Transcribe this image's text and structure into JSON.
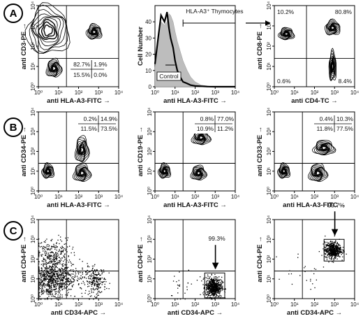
{
  "figure": {
    "row_labels": [
      "A",
      "B",
      "C"
    ]
  },
  "chart_data": [
    {
      "id": "A1",
      "type": "scatter",
      "style": "contour",
      "xlabel": "anti HLA-A3-FITC →",
      "ylabel": "anti CD3-PE →",
      "x_scale": "log",
      "y_scale": "log",
      "xlim": [
        1,
        10000
      ],
      "ylim": [
        1,
        10000
      ],
      "ticks": [
        "10⁰",
        "10¹",
        "10²",
        "10³",
        "10⁴"
      ],
      "quadrants": {
        "x": 25,
        "y": 25
      },
      "quadrant_labels": {
        "UL": "82.7%",
        "UR": "1.9%",
        "LL": "15.5%",
        "LR": "0.0%"
      },
      "quadrant_label_box": "lower-right",
      "populations": [
        {
          "cx": 3,
          "cy": 600,
          "sx": 0.7,
          "sy": 0.8
        },
        {
          "cx": 600,
          "cy": 500,
          "sx": 0.25,
          "sy": 0.25
        },
        {
          "cx": 6,
          "cy": 8,
          "sx": 0.25,
          "sy": 0.3
        }
      ]
    },
    {
      "id": "A2",
      "type": "area",
      "style": "histogram",
      "xlabel": "anti HLA-A3-FITC →",
      "ylabel": "Cell Number",
      "x_scale": "log",
      "xlim": [
        1,
        10000
      ],
      "ylim": [
        0,
        50
      ],
      "ticks": [
        "10⁰",
        "10¹",
        "10²",
        "10³",
        "10⁴"
      ],
      "yticks": [
        0,
        10,
        20,
        30,
        40
      ],
      "series": [
        {
          "name": "HLA-A3⁺ Thymocytes",
          "x": [
            1,
            1.5,
            2,
            3,
            4,
            5,
            6,
            8,
            10,
            13,
            18,
            25,
            40,
            60,
            100,
            200,
            400,
            1000,
            10000
          ],
          "values": [
            14,
            32,
            44,
            40,
            46,
            36,
            30,
            24,
            16,
            10,
            6,
            3,
            2,
            1,
            0.5,
            0.3,
            0.1,
            0,
            0
          ]
        },
        {
          "name": "Control",
          "x": [
            1,
            1.5,
            2,
            3,
            4,
            5,
            6,
            8,
            10,
            13,
            18,
            25,
            40,
            60,
            100,
            200,
            400,
            1000,
            10000
          ],
          "values": [
            12,
            30,
            40,
            38,
            40,
            45,
            44,
            40,
            34,
            28,
            22,
            16,
            10,
            6,
            3,
            1,
            0.5,
            0,
            0
          ]
        }
      ],
      "gate": {
        "label": "HLA-A3⁺ Thymocytes",
        "x_from": 25,
        "x_to": 10000
      },
      "control_label": "Control"
    },
    {
      "id": "A3",
      "type": "scatter",
      "style": "contour",
      "xlabel": "anti CD4-TC →",
      "ylabel": "anti CD8-PE →",
      "x_scale": "log",
      "y_scale": "log",
      "xlim": [
        1,
        10000
      ],
      "ylim": [
        1,
        10000
      ],
      "ticks": [
        "10⁰",
        "10¹",
        "10²",
        "10³",
        "10⁴"
      ],
      "quadrants": {
        "x": 40,
        "y": 25
      },
      "quadrant_labels": {
        "UL": "10.2%",
        "UR": "80.8%",
        "LL": "0.6%",
        "LR": "8.4%"
      },
      "quadrant_label_box": "corners",
      "populations": [
        {
          "cx": 800,
          "cy": 800,
          "sx": 0.25,
          "sy": 0.25
        },
        {
          "cx": 800,
          "cy": 10,
          "sx": 0.12,
          "sy": 0.5
        },
        {
          "cx": 4,
          "cy": 400,
          "sx": 0.25,
          "sy": 0.2
        }
      ]
    },
    {
      "id": "B1",
      "type": "scatter",
      "style": "contour",
      "xlabel": "anti HLA-A3-FITC →",
      "ylabel": "anti CD34-PE →",
      "x_scale": "log",
      "y_scale": "log",
      "xlim": [
        1,
        10000
      ],
      "ylim": [
        1,
        10000
      ],
      "ticks": [
        "10⁰",
        "10¹",
        "10²",
        "10³",
        "10⁴"
      ],
      "quadrants": {
        "x": 25,
        "y": 25
      },
      "quadrant_labels": {
        "UL": "0.2%",
        "UR": "14.9%",
        "LL": "11.5%",
        "LR": "73.5%"
      },
      "quadrant_label_box": "top-right",
      "populations": [
        {
          "cx": 150,
          "cy": 8,
          "sx": 0.28,
          "sy": 0.3
        },
        {
          "cx": 150,
          "cy": 120,
          "sx": 0.22,
          "sy": 0.45
        },
        {
          "cx": 3,
          "cy": 10,
          "sx": 0.2,
          "sy": 0.25
        }
      ]
    },
    {
      "id": "B2",
      "type": "scatter",
      "style": "contour",
      "xlabel": "anti HLA-A3-FITC →",
      "ylabel": "anti CD19-PE →",
      "x_scale": "log",
      "y_scale": "log",
      "xlim": [
        1,
        10000
      ],
      "ylim": [
        1,
        10000
      ],
      "ticks": [
        "10⁰",
        "10¹",
        "10²",
        "10³",
        "10⁴"
      ],
      "quadrants": {
        "x": 25,
        "y": 25
      },
      "quadrant_labels": {
        "UL": "0.8%",
        "UR": "77.0%",
        "LL": "10.9%",
        "LR": "11.2%"
      },
      "quadrant_label_box": "top-right",
      "populations": [
        {
          "cx": 200,
          "cy": 500,
          "sx": 0.3,
          "sy": 0.25
        },
        {
          "cx": 150,
          "cy": 8,
          "sx": 0.25,
          "sy": 0.25
        },
        {
          "cx": 3,
          "cy": 10,
          "sx": 0.2,
          "sy": 0.25
        }
      ]
    },
    {
      "id": "B3",
      "type": "scatter",
      "style": "contour",
      "xlabel": "anti HLA-A3-FITC →",
      "ylabel": "anti CD33-PE →",
      "x_scale": "log",
      "y_scale": "log",
      "xlim": [
        1,
        10000
      ],
      "ylim": [
        1,
        10000
      ],
      "ticks": [
        "10⁰",
        "10¹",
        "10²",
        "10³",
        "10⁴"
      ],
      "quadrants": {
        "x": 25,
        "y": 25
      },
      "quadrant_labels": {
        "UL": "0.4%",
        "UR": "10.3%",
        "LL": "11.8%",
        "LR": "77.5%"
      },
      "quadrant_label_box": "top-right",
      "populations": [
        {
          "cx": 150,
          "cy": 8,
          "sx": 0.3,
          "sy": 0.3
        },
        {
          "cx": 300,
          "cy": 150,
          "sx": 0.35,
          "sy": 0.25
        },
        {
          "cx": 3,
          "cy": 10,
          "sx": 0.2,
          "sy": 0.25
        }
      ]
    },
    {
      "id": "C1",
      "type": "scatter",
      "style": "dot",
      "xlabel": "anti CD34-APC →",
      "ylabel": "anti CD4-PE →",
      "x_scale": "log",
      "y_scale": "log",
      "xlim": [
        1,
        10000
      ],
      "ylim": [
        1,
        10000
      ],
      "ticks": [
        "10⁰",
        "10¹",
        "10²",
        "10³",
        "10⁴"
      ],
      "quadrants": {
        "x": 25,
        "y": 25
      },
      "quadrant_labels": {},
      "populations": [
        {
          "cx": 4,
          "cy": 8,
          "sx": 0.5,
          "sy": 0.45,
          "n": 650
        },
        {
          "cx": 5,
          "cy": 150,
          "sx": 0.45,
          "sy": 0.45,
          "n": 300
        },
        {
          "cx": 700,
          "cy": 8,
          "sx": 0.25,
          "sy": 0.35,
          "n": 220
        },
        {
          "cx": 40,
          "cy": 10,
          "sx": 0.5,
          "sy": 0.35,
          "n": 150
        }
      ]
    },
    {
      "id": "C2",
      "type": "scatter",
      "style": "dot",
      "xlabel": "anti CD34-APC →",
      "ylabel": "anti CD4-PE →",
      "x_scale": "log",
      "y_scale": "log",
      "xlim": [
        1,
        10000
      ],
      "ylim": [
        1,
        10000
      ],
      "ticks": [
        "10⁰",
        "10¹",
        "10²",
        "10³",
        "10⁴"
      ],
      "quadrants": {
        "x": 25,
        "y": 25
      },
      "quadrant_labels": {},
      "gate_label": "99.3%",
      "gate": {
        "x": [
          300,
          3000
        ],
        "y": [
          1.1,
          20
        ]
      },
      "populations": [
        {
          "cx": 800,
          "cy": 4,
          "sx": 0.2,
          "sy": 0.25,
          "n": 600
        },
        {
          "cx": 20,
          "cy": 5,
          "sx": 0.6,
          "sy": 0.5,
          "n": 25
        }
      ]
    },
    {
      "id": "C3",
      "type": "scatter",
      "style": "dot",
      "xlabel": "anti CD34-APC →",
      "ylabel": "anti CD4-PE →",
      "x_scale": "log",
      "y_scale": "log",
      "xlim": [
        1,
        10000
      ],
      "ylim": [
        1,
        10000
      ],
      "ticks": [
        "10⁰",
        "10¹",
        "10²",
        "10³",
        "10⁴"
      ],
      "quadrants": {
        "x": 25,
        "y": 25
      },
      "quadrant_labels": {},
      "gate_label": "99.7%",
      "gate": {
        "x": [
          300,
          3000
        ],
        "y": [
          80,
          1000
        ]
      },
      "populations": [
        {
          "cx": 800,
          "cy": 300,
          "sx": 0.2,
          "sy": 0.2,
          "n": 550
        },
        {
          "cx": 30,
          "cy": 20,
          "sx": 0.7,
          "sy": 0.6,
          "n": 25
        }
      ]
    }
  ]
}
